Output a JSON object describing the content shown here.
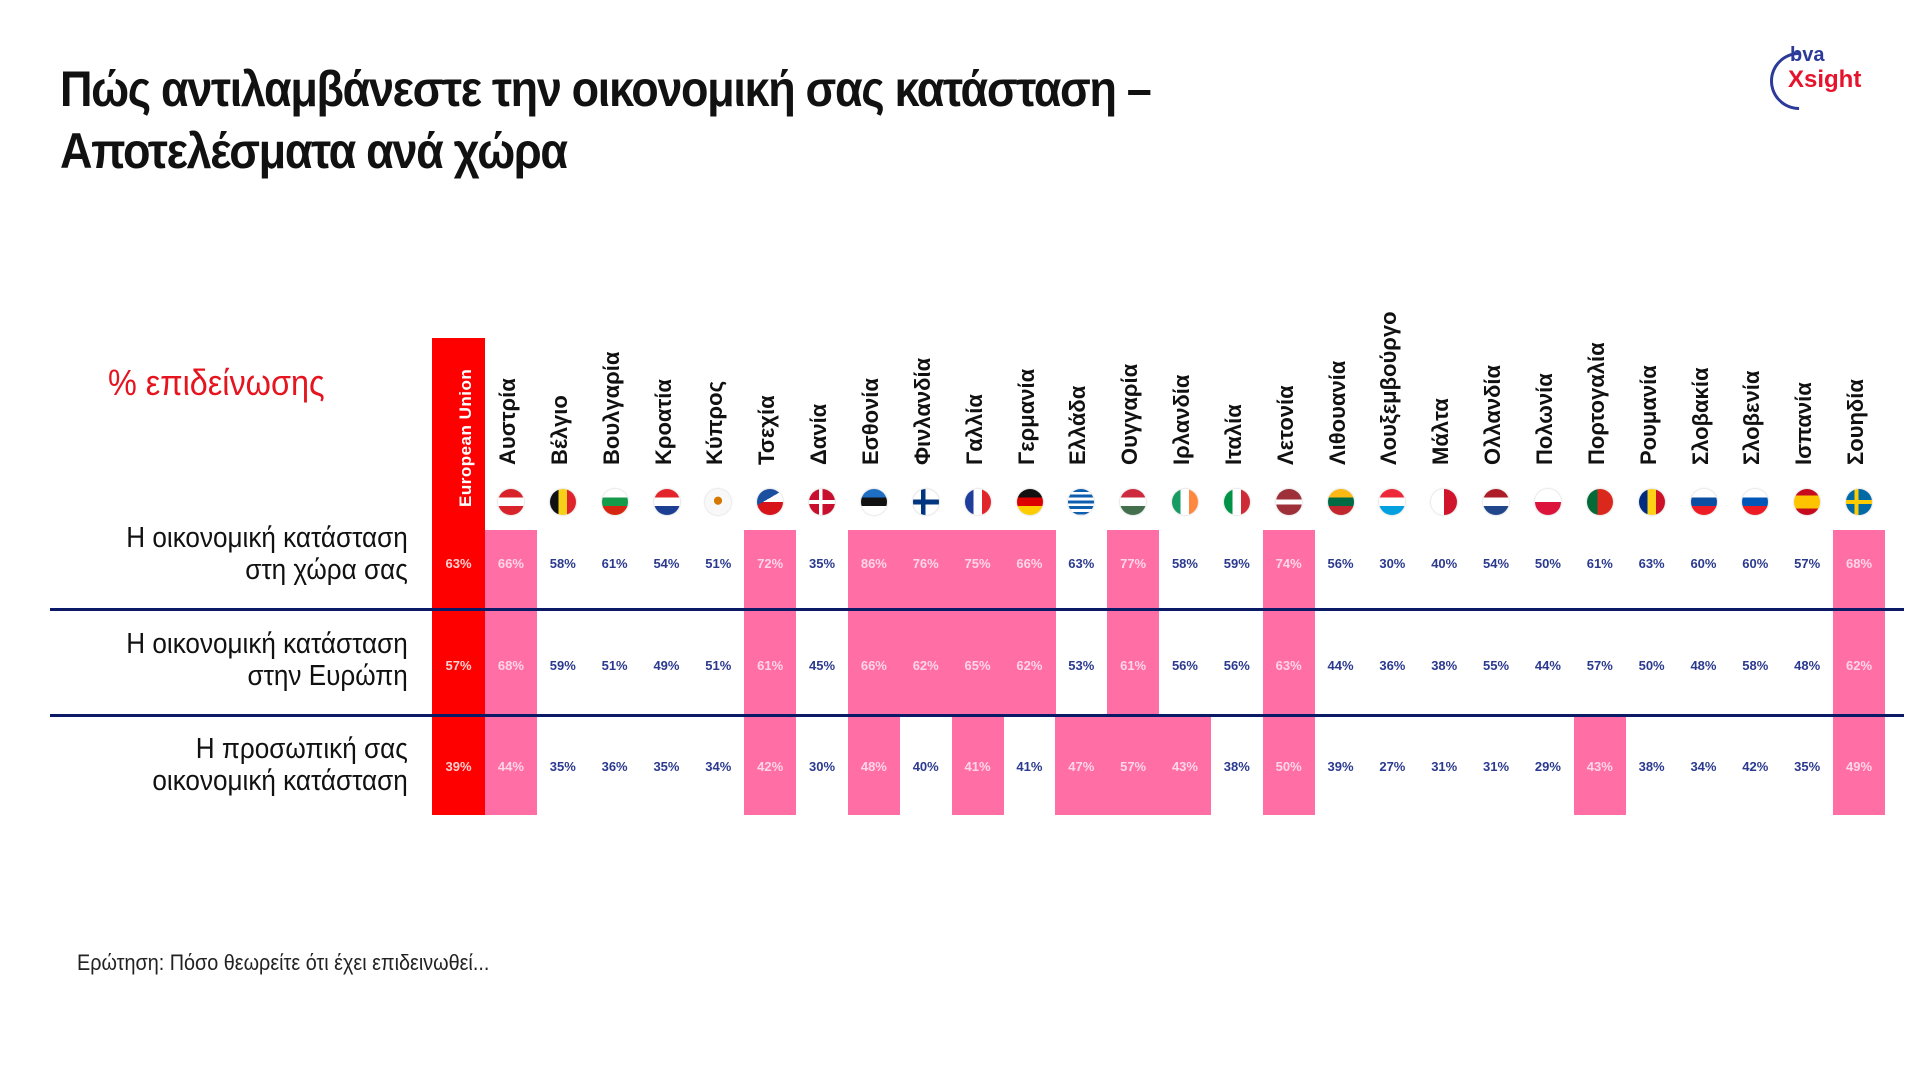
{
  "title": {
    "line1": "Πώς αντιλαμβάνεστε την οικονομική σας κατάσταση –",
    "line2": "Αποτελέσματα ανά χώρα"
  },
  "logo": {
    "top": "bva",
    "bottom": "Xsight"
  },
  "metric_label": "% επιδείνωσης",
  "footer_note": "Ερώτηση: Πόσο θεωρείτε ότι έχει επιδεινωθεί...",
  "colors": {
    "eu": "#ff0000",
    "highlight": "#ff6fa6",
    "value_text": "#2b3a8f",
    "divider": "#0b1a66",
    "accent_red": "#e5141e"
  },
  "chart_data": {
    "type": "table",
    "title": "Πώς αντιλαμβάνεστε την οικονομική σας κατάσταση – Αποτελέσματα ανά χώρα",
    "subtitle": "% επιδείνωσης",
    "note": "Ερώτηση: Πόσο θεωρείτε ότι έχει επιδεινωθεί...",
    "categories": [
      "European Union",
      "Αυστρία",
      "Βέλγιο",
      "Βουλγαρία",
      "Κροατία",
      "Κύπρος",
      "Τσεχία",
      "Δανία",
      "Εσθονία",
      "Φινλανδία",
      "Γαλλία",
      "Γερμανία",
      "Ελλάδα",
      "Ουγγαρία",
      "Ιρλανδία",
      "Ιταλία",
      "Λετονία",
      "Λιθουανία",
      "Λουξεμβούργο",
      "Μάλτα",
      "Ολλανδία",
      "Πολωνία",
      "Πορτογαλία",
      "Ρουμανία",
      "Σλοβακία",
      "Σλοβενία",
      "Ισπανία",
      "Σουηδία"
    ],
    "series": [
      {
        "name": "Η οικονομική κατάσταση στη χώρα σας",
        "values": [
          63,
          66,
          58,
          61,
          54,
          51,
          72,
          35,
          86,
          76,
          75,
          66,
          63,
          77,
          58,
          59,
          74,
          56,
          30,
          40,
          54,
          50,
          61,
          63,
          60,
          60,
          57,
          68
        ],
        "highlighted": [
          false,
          true,
          false,
          false,
          false,
          false,
          true,
          false,
          true,
          true,
          true,
          true,
          false,
          true,
          false,
          false,
          true,
          false,
          false,
          false,
          false,
          false,
          false,
          false,
          false,
          false,
          false,
          true
        ]
      },
      {
        "name": "Η οικονομική κατάσταση στην Ευρώπη",
        "values": [
          57,
          68,
          59,
          51,
          49,
          51,
          61,
          45,
          66,
          62,
          65,
          62,
          53,
          61,
          56,
          56,
          63,
          44,
          36,
          38,
          55,
          44,
          57,
          50,
          48,
          58,
          48,
          62
        ],
        "highlighted": [
          false,
          true,
          false,
          false,
          false,
          false,
          true,
          false,
          true,
          true,
          true,
          true,
          false,
          true,
          false,
          false,
          true,
          false,
          false,
          false,
          false,
          false,
          false,
          false,
          false,
          false,
          false,
          true
        ]
      },
      {
        "name": "Η προσωπική σας οικονομική κατάσταση",
        "values": [
          39,
          44,
          35,
          36,
          35,
          34,
          42,
          30,
          48,
          40,
          41,
          41,
          47,
          57,
          43,
          38,
          50,
          39,
          27,
          31,
          31,
          29,
          43,
          38,
          34,
          42,
          35,
          49
        ],
        "highlighted": [
          false,
          true,
          false,
          false,
          false,
          false,
          true,
          false,
          true,
          false,
          true,
          false,
          true,
          true,
          true,
          false,
          true,
          false,
          false,
          false,
          false,
          false,
          true,
          false,
          false,
          false,
          false,
          true
        ]
      }
    ],
    "unit": "%"
  },
  "rows": [
    {
      "label_line1": "Η οικονομική κατάσταση",
      "label_line2": "στη χώρα σας"
    },
    {
      "label_line1": "Η οικονομική κατάσταση",
      "label_line2": "στην Ευρώπη"
    },
    {
      "label_line1": "Η προσωπική σας",
      "label_line2": "οικονομική κατάσταση"
    }
  ],
  "eu_label": "European Union",
  "countries": [
    {
      "name": "Αυστρία",
      "flag": "austria"
    },
    {
      "name": "Βέλγιο",
      "flag": "belgium"
    },
    {
      "name": "Βουλγαρία",
      "flag": "bulgaria"
    },
    {
      "name": "Κροατία",
      "flag": "croatia"
    },
    {
      "name": "Κύπρος",
      "flag": "cyprus"
    },
    {
      "name": "Τσεχία",
      "flag": "czechia"
    },
    {
      "name": "Δανία",
      "flag": "denmark"
    },
    {
      "name": "Εσθονία",
      "flag": "estonia"
    },
    {
      "name": "Φινλανδία",
      "flag": "finland"
    },
    {
      "name": "Γαλλία",
      "flag": "france"
    },
    {
      "name": "Γερμανία",
      "flag": "germany"
    },
    {
      "name": "Ελλάδα",
      "flag": "greece"
    },
    {
      "name": "Ουγγαρία",
      "flag": "hungary"
    },
    {
      "name": "Ιρλανδία",
      "flag": "ireland"
    },
    {
      "name": "Ιταλία",
      "flag": "italy"
    },
    {
      "name": "Λετονία",
      "flag": "latvia"
    },
    {
      "name": "Λιθουανία",
      "flag": "lithuania"
    },
    {
      "name": "Λουξεμβούργο",
      "flag": "luxembourg"
    },
    {
      "name": "Μάλτα",
      "flag": "malta"
    },
    {
      "name": "Ολλανδία",
      "flag": "netherlands"
    },
    {
      "name": "Πολωνία",
      "flag": "poland"
    },
    {
      "name": "Πορτογαλία",
      "flag": "portugal"
    },
    {
      "name": "Ρουμανία",
      "flag": "romania"
    },
    {
      "name": "Σλοβακία",
      "flag": "slovakia"
    },
    {
      "name": "Σλοβενία",
      "flag": "slovenia"
    },
    {
      "name": "Ισπανία",
      "flag": "spain"
    },
    {
      "name": "Σουηδία",
      "flag": "sweden"
    }
  ]
}
